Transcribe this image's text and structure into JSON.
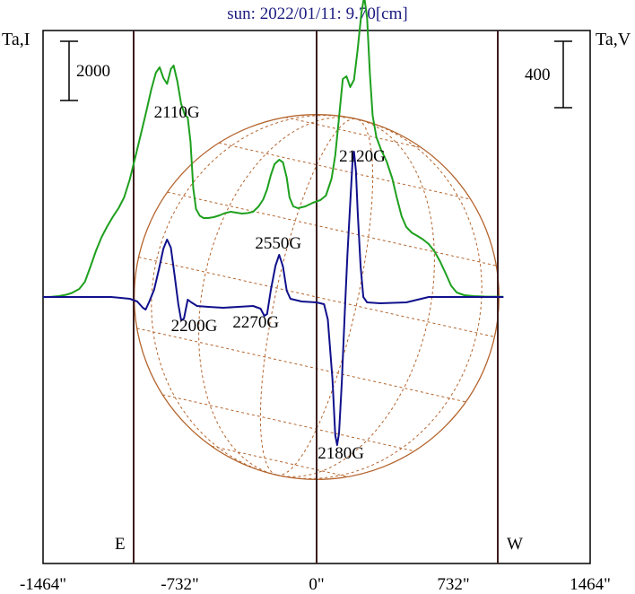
{
  "title": "sun: 2022/01/11: 9.70[cm]",
  "left_axis_label": "Ta,I",
  "right_axis_label": "Ta,V",
  "scale_bars": {
    "intensity": {
      "label": "2000",
      "value": 2000
    },
    "polarization": {
      "label": "400",
      "value": 400
    }
  },
  "limb_labels": {
    "east": "E",
    "west": "W"
  },
  "colors": {
    "intensity": "#1ea01e",
    "polarization": "#10108c",
    "solar_disk": "#b4642d",
    "frame": "#000000",
    "limb_lines": "#3c1e1e",
    "title": "#1a1a80"
  },
  "chart_data": {
    "type": "line",
    "title": "sun: 2022/01/11: 9.70[cm]",
    "xlabel": "",
    "ylabel_left": "Ta,I",
    "ylabel_right": "Ta,V",
    "x_unit": "arcsec",
    "xlim": [
      -1464,
      1464
    ],
    "x_ticks": [
      {
        "value": -1464,
        "label": "-1464\""
      },
      {
        "value": -732,
        "label": "-732\""
      },
      {
        "value": 0,
        "label": "0\""
      },
      {
        "value": 732,
        "label": "732\""
      },
      {
        "value": 1464,
        "label": "1464\""
      }
    ],
    "limb_positions": [
      -976,
      976
    ],
    "grid": false,
    "legend": "none",
    "series": [
      {
        "color": "#1ea01e",
        "y_unit": "relative",
        "points": [
          [
            -1464,
            0.0
          ],
          [
            -1420,
            0.003
          ],
          [
            -1380,
            0.01
          ],
          [
            -1340,
            0.025
          ],
          [
            -1310,
            0.045
          ],
          [
            -1270,
            0.09
          ],
          [
            -1240,
            0.17
          ],
          [
            -1210,
            0.34
          ],
          [
            -1180,
            0.52
          ],
          [
            -1150,
            0.67
          ],
          [
            -1120,
            0.79
          ],
          [
            -1090,
            0.895
          ],
          [
            -1060,
            0.99
          ],
          [
            -1030,
            1.11
          ],
          [
            -1000,
            1.31
          ],
          [
            -970,
            1.56
          ],
          [
            -940,
            1.82
          ],
          [
            -910,
            2.08
          ],
          [
            -885,
            2.31
          ],
          [
            -860,
            2.5
          ],
          [
            -840,
            2.56
          ],
          [
            -820,
            2.44
          ],
          [
            -800,
            2.375
          ],
          [
            -780,
            2.54
          ],
          [
            -765,
            2.58
          ],
          [
            -745,
            2.4
          ],
          [
            -725,
            2.15
          ],
          [
            -705,
            2.03
          ],
          [
            -690,
            2.0
          ],
          [
            -675,
            1.73
          ],
          [
            -660,
            1.21
          ],
          [
            -645,
            0.98
          ],
          [
            -625,
            0.905
          ],
          [
            -605,
            0.88
          ],
          [
            -580,
            0.88
          ],
          [
            -550,
            0.89
          ],
          [
            -520,
            0.91
          ],
          [
            -490,
            0.935
          ],
          [
            -460,
            0.95
          ],
          [
            -430,
            0.94
          ],
          [
            -400,
            0.93
          ],
          [
            -370,
            0.935
          ],
          [
            -340,
            0.95
          ],
          [
            -310,
            1.01
          ],
          [
            -285,
            1.09
          ],
          [
            -265,
            1.2
          ],
          [
            -245,
            1.36
          ],
          [
            -225,
            1.48
          ],
          [
            -200,
            1.53
          ],
          [
            -180,
            1.5
          ],
          [
            -160,
            1.33
          ],
          [
            -145,
            1.11
          ],
          [
            -125,
            1.01
          ],
          [
            -100,
            0.99
          ],
          [
            -60,
            1.01
          ],
          [
            -20,
            1.05
          ],
          [
            20,
            1.08
          ],
          [
            50,
            1.13
          ],
          [
            80,
            1.32
          ],
          [
            100,
            1.58
          ],
          [
            120,
            2.0
          ],
          [
            140,
            2.43
          ],
          [
            160,
            2.46
          ],
          [
            180,
            2.34
          ],
          [
            200,
            2.42
          ],
          [
            220,
            2.76
          ],
          [
            240,
            3.17
          ],
          [
            255,
            3.35
          ],
          [
            270,
            3.11
          ],
          [
            285,
            2.49
          ],
          [
            300,
            2.02
          ],
          [
            320,
            1.78
          ],
          [
            345,
            1.64
          ],
          [
            375,
            1.51
          ],
          [
            405,
            1.32
          ],
          [
            430,
            1.1
          ],
          [
            455,
            0.9
          ],
          [
            480,
            0.78
          ],
          [
            510,
            0.715
          ],
          [
            540,
            0.68
          ],
          [
            570,
            0.64
          ],
          [
            600,
            0.59
          ],
          [
            630,
            0.51
          ],
          [
            660,
            0.4
          ],
          [
            690,
            0.265
          ],
          [
            720,
            0.125
          ],
          [
            750,
            0.05
          ],
          [
            790,
            0.02
          ],
          [
            840,
            0.01
          ],
          [
            900,
            0.005
          ],
          [
            1000,
            0.002
          ]
        ]
      },
      {
        "color": "#10108c",
        "y_unit": "relative",
        "points": [
          [
            -1464,
            0.0
          ],
          [
            -1300,
            0.0
          ],
          [
            -1100,
            0.0
          ],
          [
            -1000,
            -0.02
          ],
          [
            -960,
            -0.05
          ],
          [
            -930,
            -0.12
          ],
          [
            -915,
            -0.14
          ],
          [
            -895,
            -0.05
          ],
          [
            -870,
            0.08
          ],
          [
            -845,
            0.3
          ],
          [
            -820,
            0.54
          ],
          [
            -800,
            0.64
          ],
          [
            -780,
            0.55
          ],
          [
            -760,
            0.24
          ],
          [
            -740,
            -0.08
          ],
          [
            -725,
            -0.26
          ],
          [
            -710,
            -0.24
          ],
          [
            -690,
            -0.03
          ],
          [
            -670,
            -0.06
          ],
          [
            -640,
            -0.1
          ],
          [
            -580,
            -0.11
          ],
          [
            -500,
            -0.12
          ],
          [
            -420,
            -0.11
          ],
          [
            -340,
            -0.1
          ],
          [
            -300,
            -0.13
          ],
          [
            -280,
            -0.21
          ],
          [
            -265,
            -0.19
          ],
          [
            -245,
            0.08
          ],
          [
            -220,
            0.35
          ],
          [
            -200,
            0.47
          ],
          [
            -180,
            0.34
          ],
          [
            -160,
            0.07
          ],
          [
            -140,
            -0.02
          ],
          [
            -80,
            -0.05
          ],
          [
            0,
            -0.06
          ],
          [
            40,
            -0.08
          ],
          [
            60,
            -0.25
          ],
          [
            85,
            -0.92
          ],
          [
            100,
            -1.54
          ],
          [
            110,
            -1.65
          ],
          [
            120,
            -1.52
          ],
          [
            135,
            -0.95
          ],
          [
            150,
            -0.2
          ],
          [
            165,
            0.48
          ],
          [
            180,
            1.05
          ],
          [
            192,
            1.5
          ],
          [
            200,
            1.62
          ],
          [
            210,
            1.41
          ],
          [
            220,
            0.95
          ],
          [
            235,
            0.35
          ],
          [
            250,
            0.0
          ],
          [
            270,
            -0.06
          ],
          [
            340,
            -0.07
          ],
          [
            480,
            -0.06
          ],
          [
            560,
            -0.02
          ],
          [
            600,
            0.0
          ],
          [
            1000,
            0.0
          ]
        ]
      }
    ],
    "annotations": [
      {
        "text": "2110G",
        "x": -748,
        "y": 2.0
      },
      {
        "text": "2200G",
        "x": -655,
        "y": -0.38
      },
      {
        "text": "2550G",
        "x": -205,
        "y": 0.54
      },
      {
        "text": "2270G",
        "x": -325,
        "y": -0.34
      },
      {
        "text": "2120G",
        "x": 245,
        "y": 1.51
      },
      {
        "text": "2180G",
        "x": 130,
        "y": -1.8
      }
    ]
  }
}
